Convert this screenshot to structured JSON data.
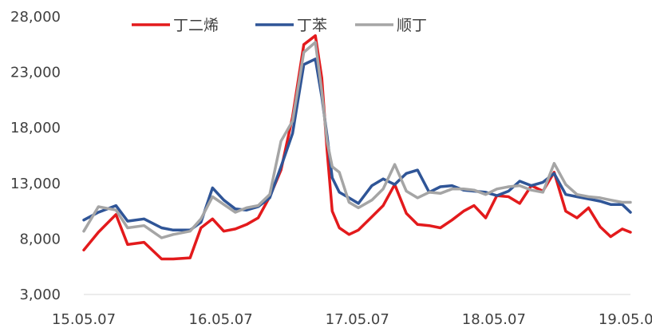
{
  "chart_data": {
    "type": "line",
    "title": "",
    "xlabel": "",
    "ylabel": "",
    "ylim": [
      3000,
      28000
    ],
    "yticks": [
      3000,
      8000,
      13000,
      18000,
      23000,
      28000
    ],
    "ytick_labels": [
      "3,000",
      "8,000",
      "13,000",
      "18,000",
      "23,000",
      "28,000"
    ],
    "xlim": [
      "15.05.07",
      "19.05.07"
    ],
    "xticks": [
      "15.05.07",
      "16.05.07",
      "17.05.07",
      "18.05.07",
      "19.05.07"
    ],
    "xtick_labels": [
      "15.05.07",
      "16.05.07",
      "17.05.07",
      "18.05.07",
      "19.05.07"
    ],
    "grid": false,
    "legend_position": "top",
    "series": [
      {
        "name": "丁二烯",
        "color": "#e31a1c",
        "x": [
          "15.05.07",
          "15.06.15",
          "15.08.01",
          "15.09.01",
          "15.10.15",
          "15.12.01",
          "16.01.01",
          "16.02.15",
          "16.03.15",
          "16.04.15",
          "16.05.15",
          "16.06.15",
          "16.07.15",
          "16.08.15",
          "16.09.15",
          "16.10.15",
          "16.11.15",
          "16.12.15",
          "17.01.15",
          "17.02.01",
          "17.02.15",
          "17.03.01",
          "17.03.20",
          "17.04.15",
          "17.05.10",
          "17.06.15",
          "17.07.15",
          "17.08.15",
          "17.09.15",
          "17.10.15",
          "17.11.15",
          "17.12.15",
          "18.01.15",
          "18.02.15",
          "18.03.15",
          "18.04.15",
          "18.05.15",
          "18.06.15",
          "18.07.15",
          "18.08.15",
          "18.09.15",
          "18.10.15",
          "18.11.15",
          "18.12.15",
          "19.01.15",
          "19.02.15",
          "19.03.15",
          "19.04.15",
          "19.05.07"
        ],
        "values": [
          7000,
          8600,
          10200,
          7500,
          7700,
          6200,
          6200,
          6300,
          9000,
          9800,
          8700,
          8900,
          9300,
          9900,
          11800,
          14200,
          19000,
          25500,
          26300,
          22500,
          16000,
          10500,
          9000,
          8400,
          8800,
          10000,
          11000,
          12900,
          10300,
          9300,
          9200,
          9000,
          9700,
          10500,
          11000,
          9900,
          11900,
          11800,
          11200,
          12800,
          12300,
          14000,
          10500,
          9900,
          10800,
          9100,
          8200,
          8900,
          8600
        ]
      },
      {
        "name": "丁苯",
        "color": "#2f5597",
        "x": [
          "15.05.07",
          "15.06.15",
          "15.08.01",
          "15.09.01",
          "15.10.15",
          "15.12.01",
          "16.01.01",
          "16.02.15",
          "16.03.15",
          "16.04.15",
          "16.05.15",
          "16.06.15",
          "16.07.15",
          "16.08.15",
          "16.09.15",
          "16.10.15",
          "16.11.15",
          "16.12.15",
          "17.01.15",
          "17.02.01",
          "17.02.15",
          "17.03.01",
          "17.03.20",
          "17.04.15",
          "17.05.10",
          "17.06.15",
          "17.07.15",
          "17.08.15",
          "17.09.15",
          "17.10.15",
          "17.11.15",
          "17.12.15",
          "18.01.15",
          "18.02.15",
          "18.03.15",
          "18.04.15",
          "18.05.15",
          "18.06.15",
          "18.07.15",
          "18.08.15",
          "18.09.15",
          "18.10.15",
          "18.11.15",
          "18.12.15",
          "19.01.15",
          "19.02.15",
          "19.03.15",
          "19.04.15",
          "19.05.07"
        ],
        "values": [
          9700,
          10400,
          11000,
          9600,
          9800,
          9000,
          8800,
          8800,
          9500,
          12600,
          11500,
          10700,
          10600,
          10900,
          11700,
          14500,
          17500,
          23700,
          24200,
          20800,
          17300,
          13500,
          12200,
          11700,
          11200,
          12800,
          13400,
          12900,
          13900,
          14200,
          12200,
          12700,
          12800,
          12400,
          12300,
          12200,
          11900,
          12300,
          13200,
          12800,
          13100,
          13900,
          12000,
          11800,
          11600,
          11400,
          11100,
          11100,
          10400
        ]
      },
      {
        "name": "顺丁",
        "color": "#a5a5a5",
        "x": [
          "15.05.07",
          "15.06.15",
          "15.08.01",
          "15.09.01",
          "15.10.15",
          "15.12.01",
          "16.01.01",
          "16.02.15",
          "16.03.15",
          "16.04.15",
          "16.05.15",
          "16.06.15",
          "16.07.15",
          "16.08.15",
          "16.09.15",
          "16.10.15",
          "16.11.15",
          "16.12.15",
          "17.01.15",
          "17.02.01",
          "17.02.15",
          "17.03.01",
          "17.03.20",
          "17.04.15",
          "17.05.10",
          "17.06.15",
          "17.07.15",
          "17.08.15",
          "17.09.15",
          "17.10.15",
          "17.11.15",
          "17.12.15",
          "18.01.15",
          "18.02.15",
          "18.03.15",
          "18.04.15",
          "18.05.15",
          "18.06.15",
          "18.07.15",
          "18.08.15",
          "18.09.15",
          "18.10.15",
          "18.11.15",
          "18.12.15",
          "19.01.15",
          "19.02.15",
          "19.03.15",
          "19.04.15",
          "19.05.07"
        ],
        "values": [
          8700,
          10900,
          10600,
          9000,
          9200,
          8100,
          8400,
          8700,
          9800,
          11800,
          11100,
          10400,
          10800,
          11000,
          12000,
          16800,
          18600,
          24800,
          25700,
          21300,
          16800,
          14500,
          14000,
          11300,
          10800,
          11500,
          12500,
          14700,
          12300,
          11700,
          12200,
          12100,
          12500,
          12500,
          12400,
          12000,
          12500,
          12700,
          12800,
          12400,
          12200,
          14800,
          12900,
          12000,
          11800,
          11700,
          11500,
          11300,
          11300
        ]
      }
    ]
  }
}
